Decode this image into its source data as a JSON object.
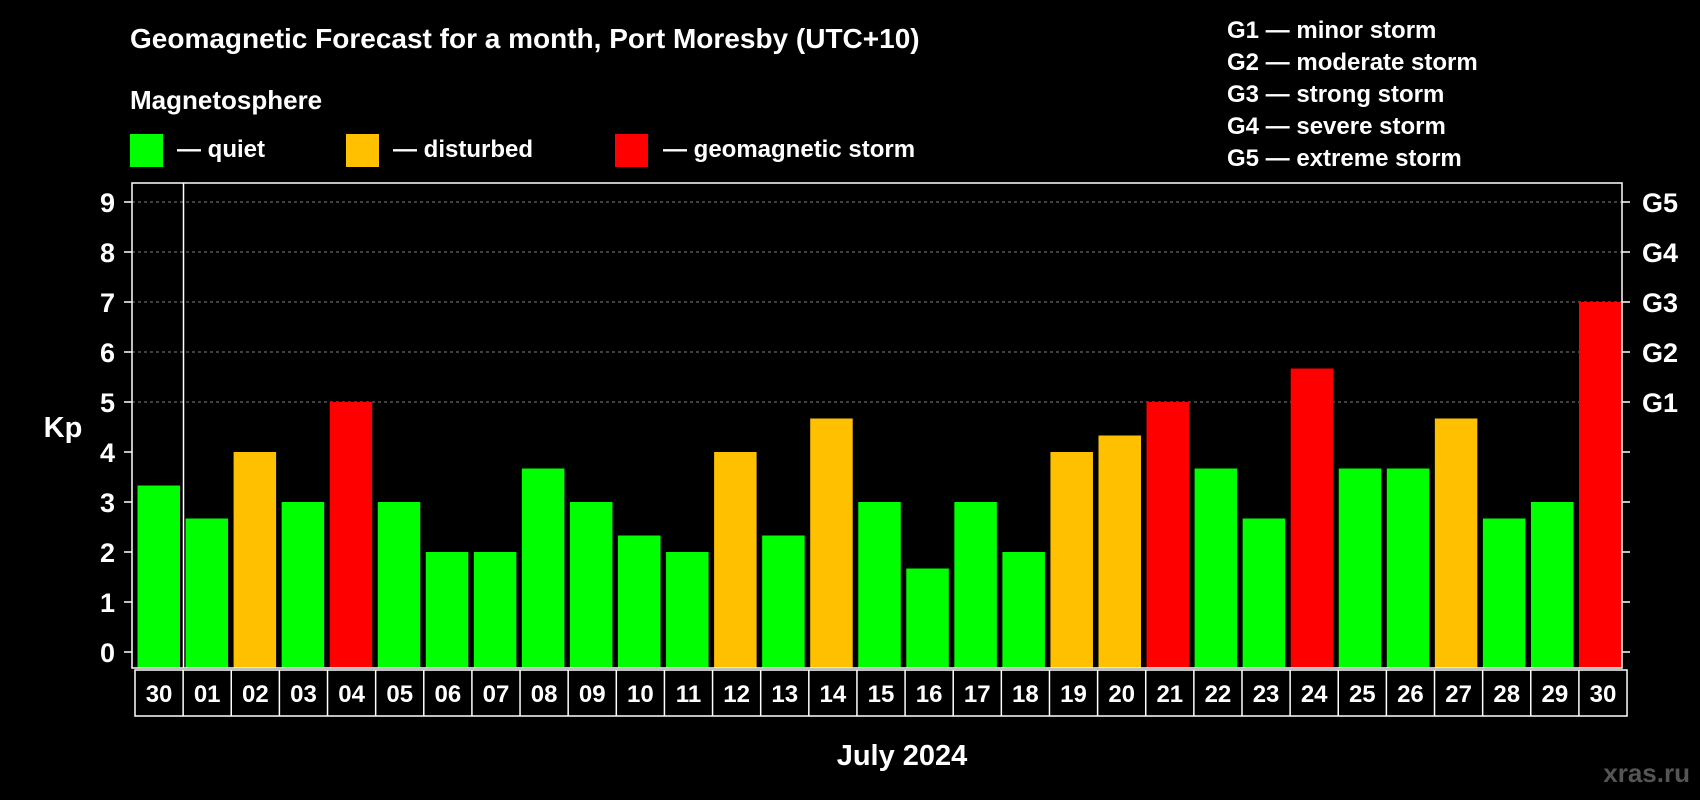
{
  "chart_data": {
    "type": "bar",
    "title": "Geomagnetic Forecast for a month, Port Moresby (UTC+10)",
    "legend": {
      "heading": "Magnetosphere",
      "items": [
        {
          "label": "— quiet",
          "color": "#00ff00"
        },
        {
          "label": "— disturbed",
          "color": "#ffc000"
        },
        {
          "label": "— geomagnetic storm",
          "color": "#ff0000"
        }
      ]
    },
    "storm_levels": [
      "G1 — minor storm",
      "G2 — moderate storm",
      "G3 — strong storm",
      "G4 — severe storm",
      "G5 — extreme storm"
    ],
    "ylabel": "Kp",
    "xlabel": "July 2024",
    "ylim": [
      0,
      9
    ],
    "yticks": [
      "0",
      "1",
      "2",
      "3",
      "4",
      "5",
      "6",
      "7",
      "8",
      "9"
    ],
    "right_labels": [
      {
        "label": "G1",
        "kp": 5
      },
      {
        "label": "G2",
        "kp": 6
      },
      {
        "label": "G3",
        "kp": 7
      },
      {
        "label": "G4",
        "kp": 8
      },
      {
        "label": "G5",
        "kp": 9
      }
    ],
    "categories": [
      "30",
      "01",
      "02",
      "03",
      "04",
      "05",
      "06",
      "07",
      "08",
      "09",
      "10",
      "11",
      "12",
      "13",
      "14",
      "15",
      "16",
      "17",
      "18",
      "19",
      "20",
      "21",
      "22",
      "23",
      "24",
      "25",
      "26",
      "27",
      "28",
      "29",
      "30"
    ],
    "values": [
      3.33,
      2.67,
      4,
      3,
      5,
      3,
      2,
      2,
      3.67,
      3,
      2.33,
      2,
      4,
      2.33,
      4.67,
      3,
      1.67,
      3,
      2,
      4,
      4.33,
      5,
      3.67,
      2.67,
      5.67,
      3.67,
      3.67,
      4.67,
      2.67,
      3,
      7
    ],
    "colors": {
      "quiet": "#00ff00",
      "disturbed": "#ffc000",
      "storm": "#ff0000",
      "grid": "#808080",
      "axis": "#ffffff"
    }
  },
  "watermark": "xras.ru"
}
